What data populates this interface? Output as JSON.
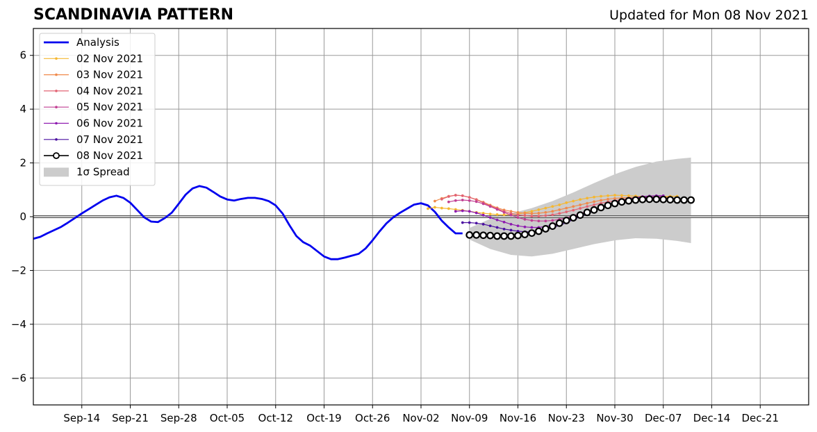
{
  "chart_data": {
    "type": "line",
    "title": "SCANDINAVIA PATTERN",
    "subtitle": "Updated for Mon 08 Nov 2021",
    "ylim": [
      -7,
      7
    ],
    "yticks": [
      -6,
      -4,
      -2,
      0,
      2,
      4,
      6
    ],
    "ytick_labels": [
      "−6",
      "−4",
      "−2",
      "0",
      "2",
      "4",
      "6"
    ],
    "xlim": [
      "2021-09-07",
      "2021-12-28"
    ],
    "xticks": [
      "2021-09-14",
      "2021-09-21",
      "2021-09-28",
      "2021-10-05",
      "2021-10-12",
      "2021-10-19",
      "2021-10-26",
      "2021-11-02",
      "2021-11-09",
      "2021-11-16",
      "2021-11-23",
      "2021-11-30",
      "2021-12-07",
      "2021-12-14",
      "2021-12-21"
    ],
    "xtick_labels": [
      "Sep-14",
      "Sep-21",
      "Sep-28",
      "Oct-05",
      "Oct-12",
      "Oct-19",
      "Oct-26",
      "Nov-02",
      "Nov-09",
      "Nov-16",
      "Nov-23",
      "Nov-30",
      "Dec-07",
      "Dec-14",
      "Dec-21"
    ],
    "grid": true,
    "legend": "top-left",
    "analysis": {
      "name": "Analysis",
      "color": "#0000ee",
      "x": [
        "2021-09-07",
        "2021-09-08",
        "2021-09-09",
        "2021-09-10",
        "2021-09-11",
        "2021-09-12",
        "2021-09-13",
        "2021-09-14",
        "2021-09-15",
        "2021-09-16",
        "2021-09-17",
        "2021-09-18",
        "2021-09-19",
        "2021-09-20",
        "2021-09-21",
        "2021-09-22",
        "2021-09-23",
        "2021-09-24",
        "2021-09-25",
        "2021-09-26",
        "2021-09-27",
        "2021-09-28",
        "2021-09-29",
        "2021-09-30",
        "2021-10-01",
        "2021-10-02",
        "2021-10-03",
        "2021-10-04",
        "2021-10-05",
        "2021-10-06",
        "2021-10-07",
        "2021-10-08",
        "2021-10-09",
        "2021-10-10",
        "2021-10-11",
        "2021-10-12",
        "2021-10-13",
        "2021-10-14",
        "2021-10-15",
        "2021-10-16",
        "2021-10-17",
        "2021-10-18",
        "2021-10-19",
        "2021-10-20",
        "2021-10-21",
        "2021-10-22",
        "2021-10-23",
        "2021-10-24",
        "2021-10-25",
        "2021-10-26",
        "2021-10-27",
        "2021-10-28",
        "2021-10-29",
        "2021-10-30",
        "2021-10-31",
        "2021-11-01",
        "2021-11-02",
        "2021-11-03",
        "2021-11-04",
        "2021-11-05",
        "2021-11-06",
        "2021-11-07",
        "2021-11-08"
      ],
      "y": [
        -0.82,
        -0.75,
        -0.62,
        -0.5,
        -0.38,
        -0.22,
        -0.05,
        0.12,
        0.28,
        0.44,
        0.6,
        0.72,
        0.78,
        0.7,
        0.52,
        0.25,
        -0.02,
        -0.18,
        -0.2,
        -0.05,
        0.15,
        0.48,
        0.82,
        1.05,
        1.14,
        1.08,
        0.92,
        0.75,
        0.64,
        0.6,
        0.66,
        0.7,
        0.7,
        0.66,
        0.58,
        0.42,
        0.12,
        -0.32,
        -0.72,
        -0.95,
        -1.08,
        -1.28,
        -1.48,
        -1.58,
        -1.58,
        -1.52,
        -1.45,
        -1.38,
        -1.18,
        -0.88,
        -0.55,
        -0.25,
        -0.02,
        0.15,
        0.3,
        0.45,
        0.5,
        0.42,
        0.18,
        -0.15,
        -0.4,
        -0.62,
        -0.62
      ]
    },
    "series": [
      {
        "name": "02 Nov 2021",
        "color": "#f5b731",
        "start": "2021-11-03",
        "values": [
          0.3,
          0.35,
          0.32,
          0.3,
          0.27,
          0.24,
          0.2,
          0.16,
          0.13,
          0.1,
          0.08,
          0.07,
          0.08,
          0.1,
          0.15,
          0.2,
          0.26,
          0.32,
          0.38,
          0.44,
          0.52,
          0.58,
          0.64,
          0.69,
          0.73,
          0.76,
          0.78,
          0.8,
          0.79,
          0.78,
          0.77,
          0.75,
          0.74,
          0.74,
          0.75,
          0.76,
          0.76
        ]
      },
      {
        "name": "03 Nov 2021",
        "color": "#f08a4b",
        "start": "2021-11-04",
        "values": [
          0.58,
          0.68,
          0.76,
          0.8,
          0.78,
          0.72,
          0.64,
          0.54,
          0.43,
          0.33,
          0.25,
          0.2,
          0.16,
          0.13,
          0.12,
          0.13,
          0.16,
          0.2,
          0.26,
          0.32,
          0.38,
          0.44,
          0.5,
          0.56,
          0.61,
          0.65,
          0.68,
          0.7,
          0.71,
          0.72,
          0.72,
          0.73,
          0.73,
          0.73,
          0.72
        ]
      },
      {
        "name": "04 Nov 2021",
        "color": "#e26373",
        "start": "2021-11-05",
        "values": [
          0.65,
          0.75,
          0.8,
          0.78,
          0.72,
          0.63,
          0.52,
          0.4,
          0.3,
          0.2,
          0.12,
          0.07,
          0.04,
          0.02,
          0.02,
          0.04,
          0.07,
          0.12,
          0.18,
          0.24,
          0.31,
          0.38,
          0.44,
          0.5,
          0.55,
          0.6,
          0.64,
          0.67,
          0.7,
          0.72,
          0.73,
          0.74,
          0.74
        ]
      },
      {
        "name": "05 Nov 2021",
        "color": "#c13f93",
        "start": "2021-11-06",
        "values": [
          0.55,
          0.6,
          0.62,
          0.6,
          0.56,
          0.48,
          0.38,
          0.27,
          0.16,
          0.06,
          -0.03,
          -0.1,
          -0.14,
          -0.16,
          -0.16,
          -0.14,
          -0.1,
          -0.04,
          0.04,
          0.12,
          0.2,
          0.28,
          0.36,
          0.44,
          0.51,
          0.57,
          0.62,
          0.66,
          0.69,
          0.72,
          0.74,
          0.76
        ]
      },
      {
        "name": "06 Nov 2021",
        "color": "#8e1ab0",
        "start": "2021-11-07",
        "values": [
          0.2,
          0.22,
          0.2,
          0.14,
          0.06,
          -0.03,
          -0.12,
          -0.2,
          -0.28,
          -0.34,
          -0.38,
          -0.4,
          -0.4,
          -0.36,
          -0.3,
          -0.22,
          -0.13,
          -0.03,
          0.07,
          0.17,
          0.27,
          0.36,
          0.45,
          0.53,
          0.6,
          0.66,
          0.71,
          0.75,
          0.77,
          0.78,
          0.78
        ]
      },
      {
        "name": "07 Nov 2021",
        "color": "#4a0fa0",
        "start": "2021-11-08",
        "values": [
          -0.22,
          -0.22,
          -0.24,
          -0.28,
          -0.34,
          -0.4,
          -0.46,
          -0.5,
          -0.54,
          -0.56,
          -0.56,
          -0.53,
          -0.48,
          -0.41,
          -0.32,
          -0.22,
          -0.11,
          0.0,
          0.11,
          0.22,
          0.32,
          0.42,
          0.5,
          0.58,
          0.64,
          0.68,
          0.71,
          0.72,
          0.72,
          0.7
        ]
      },
      {
        "name": "08 Nov 2021",
        "color": "#000000",
        "start": "2021-11-09",
        "values": [
          -0.68,
          -0.68,
          -0.69,
          -0.7,
          -0.72,
          -0.72,
          -0.72,
          -0.7,
          -0.66,
          -0.61,
          -0.54,
          -0.45,
          -0.35,
          -0.24,
          -0.14,
          -0.04,
          0.06,
          0.16,
          0.25,
          0.34,
          0.42,
          0.49,
          0.55,
          0.59,
          0.62,
          0.64,
          0.65,
          0.65,
          0.64,
          0.63,
          0.62,
          0.62,
          0.62
        ]
      }
    ],
    "spread": {
      "name": "1σ Spread",
      "color": "#cccccc",
      "x": [
        "2021-11-09",
        "2021-11-12",
        "2021-11-15",
        "2021-11-18",
        "2021-11-21",
        "2021-11-24",
        "2021-11-27",
        "2021-11-30",
        "2021-12-03",
        "2021-12-06",
        "2021-12-09",
        "2021-12-11"
      ],
      "upper": [
        -0.42,
        -0.08,
        0.12,
        0.32,
        0.58,
        0.9,
        1.25,
        1.58,
        1.85,
        2.05,
        2.15,
        2.2
      ],
      "lower": [
        -0.85,
        -1.2,
        -1.42,
        -1.48,
        -1.38,
        -1.2,
        -1.02,
        -0.88,
        -0.8,
        -0.82,
        -0.9,
        -0.98
      ]
    }
  }
}
